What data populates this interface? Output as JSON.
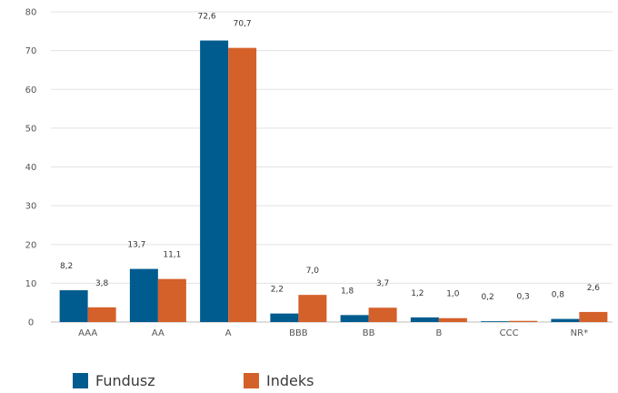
{
  "chart_data": {
    "type": "bar",
    "categories": [
      "AAA",
      "AA",
      "A",
      "BBB",
      "BB",
      "B",
      "CCC",
      "NR*"
    ],
    "series": [
      {
        "name": "Fundusz",
        "color": "#005b8e",
        "values": [
          8.2,
          13.7,
          72.6,
          2.2,
          1.8,
          1.2,
          0.2,
          0.8
        ],
        "labels": [
          "8,2",
          "13,7",
          "72,6",
          "2,2",
          "1,8",
          "1,2",
          "0,2",
          "0,8"
        ]
      },
      {
        "name": "Indeks",
        "color": "#d4602a",
        "values": [
          3.8,
          11.1,
          70.7,
          7.0,
          3.7,
          1.0,
          0.3,
          2.6
        ],
        "labels": [
          "3,8",
          "11,1",
          "70,7",
          "7,0",
          "3,7",
          "1,0",
          "0,3",
          "2,6"
        ]
      }
    ],
    "ylim": [
      0,
      80
    ],
    "yticks": [
      "0",
      "10",
      "20",
      "30",
      "40",
      "50",
      "60",
      "70",
      "80"
    ],
    "grid": true,
    "legend_position": "bottom-left"
  }
}
